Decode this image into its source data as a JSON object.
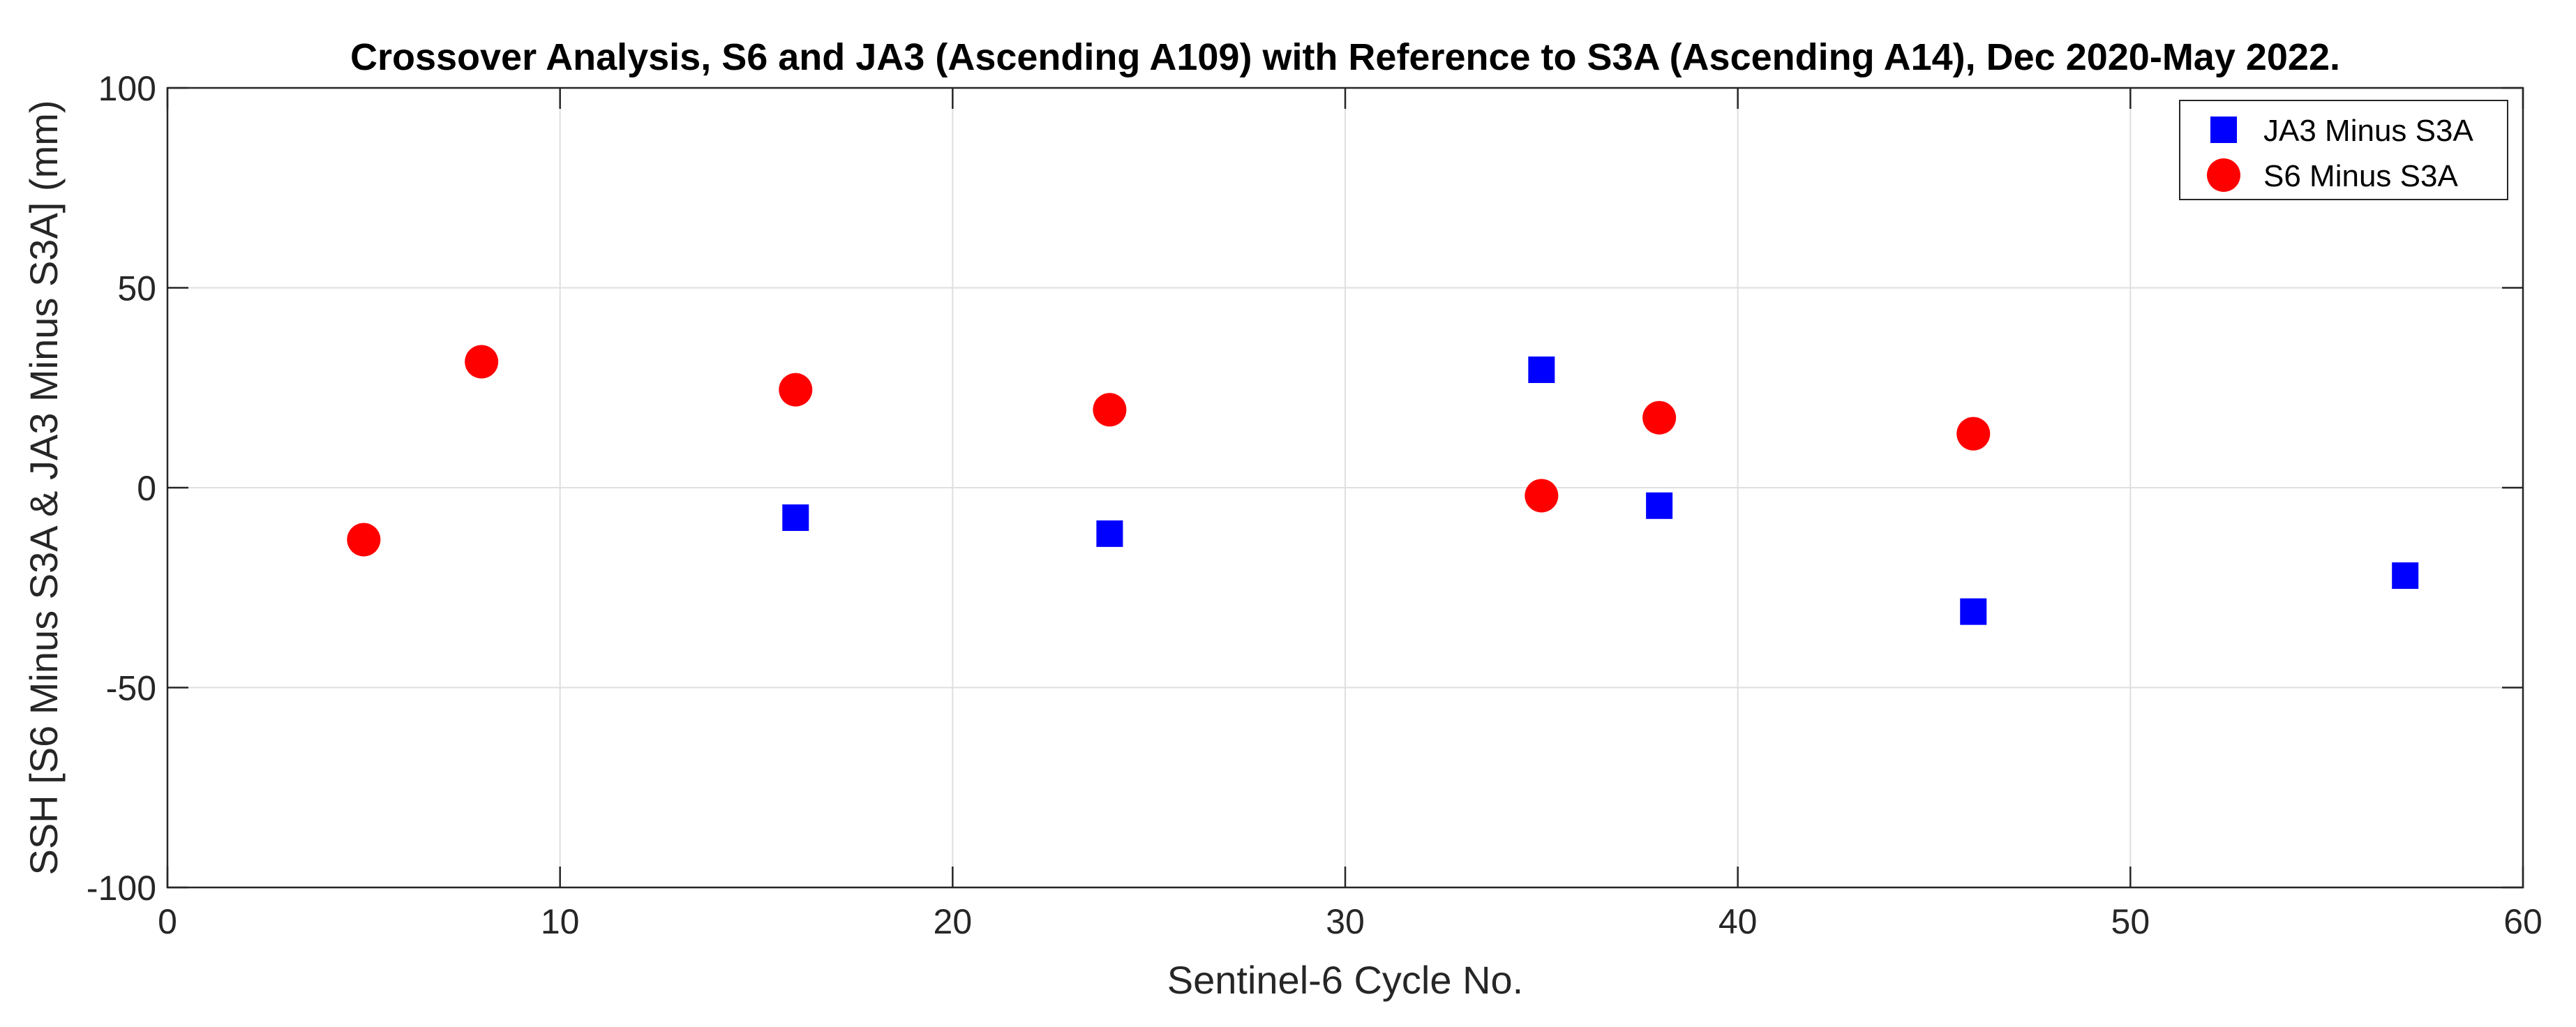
{
  "chart_data": {
    "type": "scatter",
    "title": "Crossover Analysis, S6 and JA3 (Ascending A109) with Reference to S3A (Ascending A14), Dec 2020-May 2022.",
    "xlabel": "Sentinel-6 Cycle No.",
    "ylabel": "SSH [S6 Minus S3A & JA3 Minus S3A] (mm)",
    "xlim": [
      0,
      60
    ],
    "ylim": [
      -100,
      100
    ],
    "xticks": [
      0,
      10,
      20,
      30,
      40,
      50,
      60
    ],
    "yticks": [
      -100,
      -50,
      0,
      50,
      100
    ],
    "xtick_labels": [
      "0",
      "10",
      "20",
      "30",
      "40",
      "50",
      "60"
    ],
    "ytick_labels": [
      "-100",
      "-50",
      "0",
      "50",
      "100"
    ],
    "grid": true,
    "legend_position": "top-right",
    "series": [
      {
        "name": "JA3 Minus S3A",
        "marker": "square",
        "color": "#0000ff",
        "x": [
          16,
          24,
          35,
          38,
          46,
          57
        ],
        "y": [
          -7.5,
          -11.5,
          29.5,
          -4.5,
          -31,
          -22
        ]
      },
      {
        "name": "S6 Minus S3A",
        "marker": "circle",
        "color": "#ff0000",
        "x": [
          5,
          8,
          16,
          24,
          35,
          38,
          46
        ],
        "y": [
          -13,
          31.5,
          24.5,
          19.5,
          -2,
          17.5,
          13.5
        ]
      }
    ]
  }
}
